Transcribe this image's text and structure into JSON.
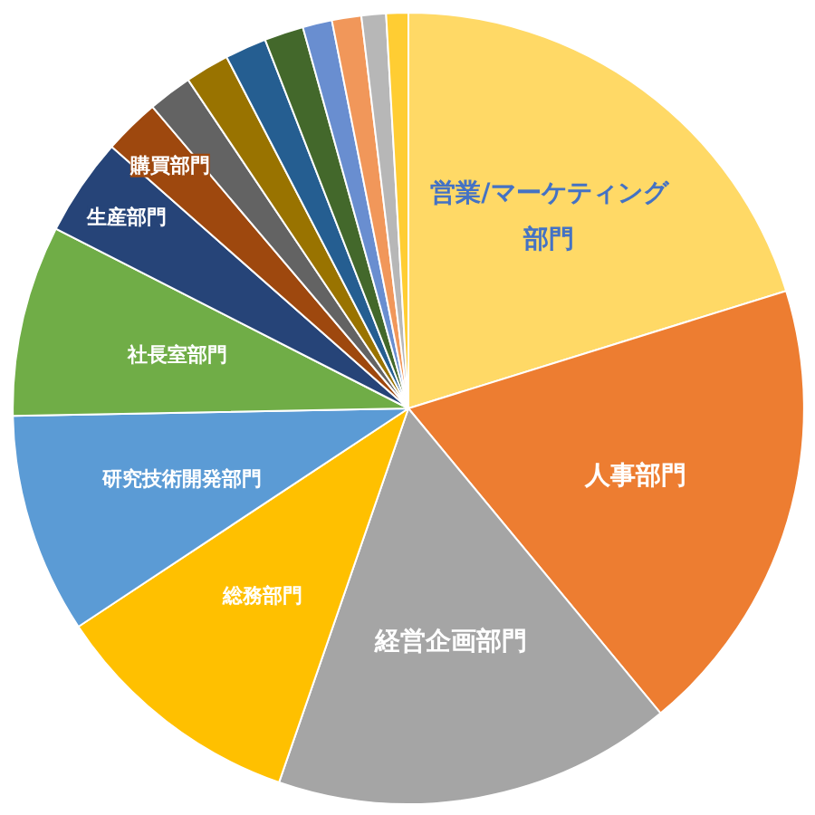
{
  "chart_data": {
    "type": "pie",
    "categories": [
      "営業/マーケティング部門",
      "人事部門",
      "経営企画部門",
      "総務部門",
      "研究技術開発部門",
      "社長室部門",
      "生産部門",
      "購買部門",
      null,
      null,
      null,
      null,
      null,
      null,
      null,
      null
    ],
    "values": [
      20.2,
      18.8,
      16.3,
      10.4,
      9.0,
      7.8,
      4.0,
      2.3,
      1.8,
      1.8,
      1.7,
      1.6,
      1.2,
      1.2,
      1.0,
      0.9
    ],
    "colors": [
      "#ffd966",
      "#ed7d31",
      "#a5a5a5",
      "#ffc000",
      "#5b9bd5",
      "#70ad47",
      "#264478",
      "#9e480e",
      "#636363",
      "#997300",
      "#255e91",
      "#43682b",
      "#698ed0",
      "#f1975a",
      "#b7b7b7",
      "#ffcd33"
    ]
  }
}
